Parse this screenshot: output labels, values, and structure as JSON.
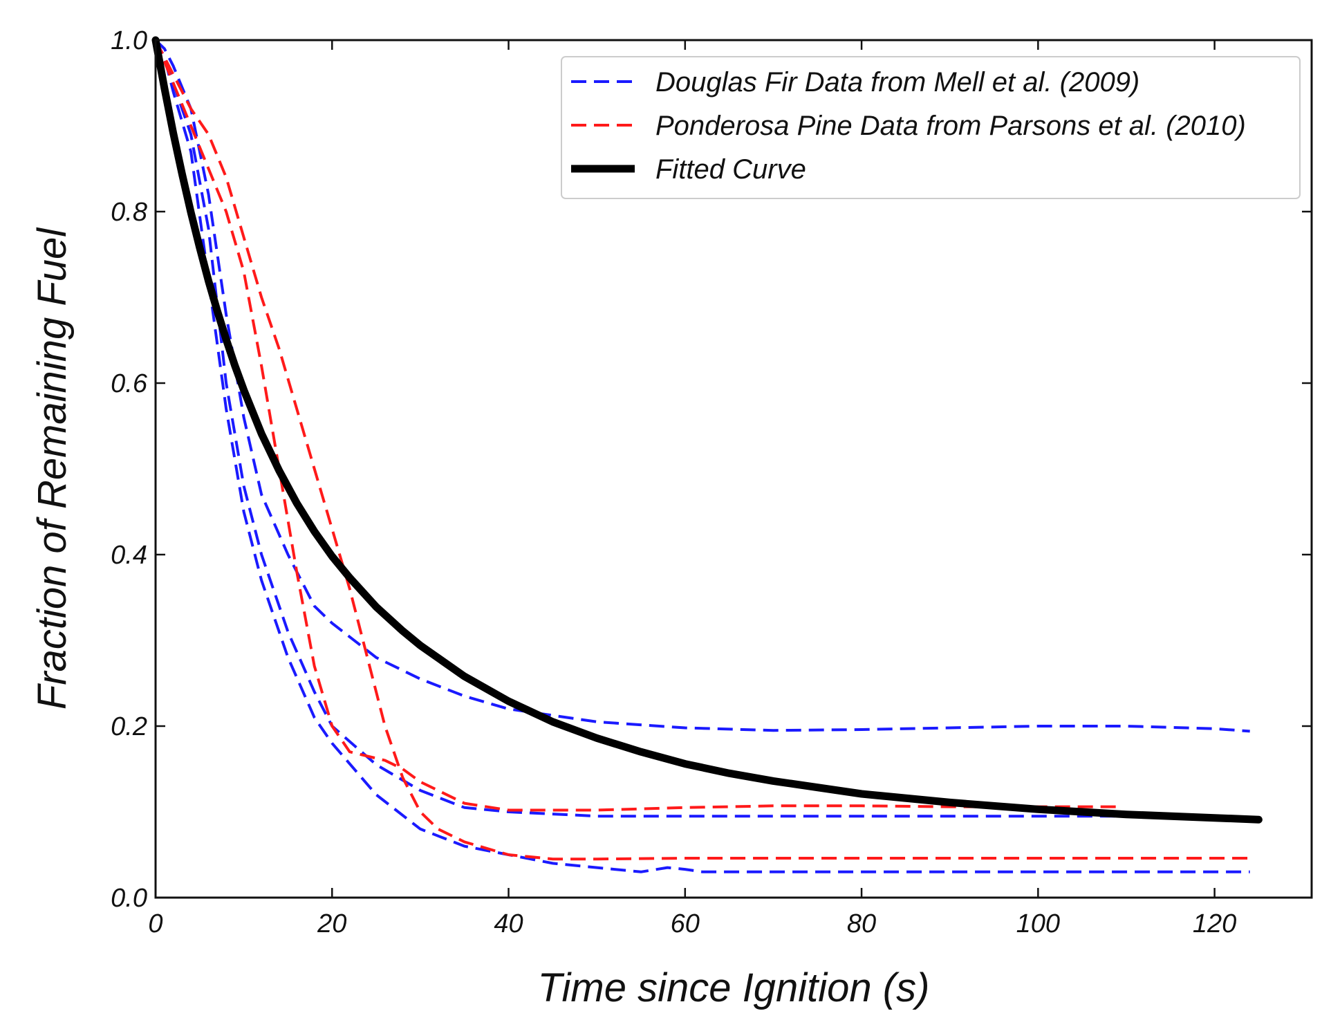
{
  "chart_data": {
    "type": "line",
    "title": "",
    "xlabel": "Time since Ignition (s)",
    "ylabel": "Fraction of Remaining Fuel",
    "xlim": [
      0,
      131
    ],
    "ylim": [
      0,
      1.0
    ],
    "xticks": [
      0,
      20,
      40,
      60,
      80,
      100,
      120
    ],
    "xtick_labels": [
      "0",
      "20",
      "40",
      "60",
      "80",
      "100",
      "120"
    ],
    "yticks": [
      0.0,
      0.2,
      0.4,
      0.6,
      0.8,
      1.0
    ],
    "ytick_labels": [
      "0.0",
      "0.2",
      "0.4",
      "0.6",
      "0.8",
      "1.0"
    ],
    "grid": false,
    "legend_position": "top-right",
    "legend": [
      {
        "label": "Douglas Fir Data from Mell et al. (2009)",
        "color": "#1a1aff",
        "style": "dashed"
      },
      {
        "label": "Ponderosa Pine Data from Parsons et al. (2010)",
        "color": "#ff1a1a",
        "style": "dashed"
      },
      {
        "label": "Fitted Curve",
        "color": "#000000",
        "style": "solid"
      }
    ],
    "series": [
      {
        "name": "Douglas Fir trial 1",
        "group": "Douglas Fir Data from Mell et al. (2009)",
        "color": "#1a1aff",
        "style": "dashed",
        "x": [
          0,
          1,
          2,
          4,
          6,
          8,
          10,
          12,
          15,
          18,
          20,
          25,
          30,
          35,
          40,
          50,
          60,
          70,
          80,
          90,
          100,
          110,
          120,
          124
        ],
        "y": [
          1.0,
          0.99,
          0.97,
          0.92,
          0.82,
          0.68,
          0.56,
          0.47,
          0.4,
          0.34,
          0.32,
          0.28,
          0.255,
          0.235,
          0.22,
          0.205,
          0.198,
          0.195,
          0.196,
          0.198,
          0.2,
          0.2,
          0.197,
          0.194
        ]
      },
      {
        "name": "Douglas Fir trial 2",
        "group": "Douglas Fir Data from Mell et al. (2009)",
        "color": "#1a1aff",
        "style": "dashed",
        "x": [
          0,
          1,
          2,
          4,
          6,
          8,
          10,
          12,
          15,
          18,
          20,
          25,
          30,
          35,
          40,
          50,
          60,
          70,
          80,
          100,
          120
        ],
        "y": [
          1.0,
          0.98,
          0.95,
          0.89,
          0.78,
          0.6,
          0.48,
          0.4,
          0.31,
          0.24,
          0.2,
          0.155,
          0.125,
          0.105,
          0.1,
          0.095,
          0.095,
          0.095,
          0.095,
          0.095,
          0.095
        ]
      },
      {
        "name": "Douglas Fir trial 3",
        "group": "Douglas Fir Data from Mell et al. (2009)",
        "color": "#1a1aff",
        "style": "dashed",
        "x": [
          0,
          1,
          2,
          4,
          6,
          8,
          10,
          12,
          15,
          18,
          20,
          25,
          30,
          35,
          40,
          45,
          50,
          55,
          58,
          60,
          62,
          70,
          80,
          100,
          124
        ],
        "y": [
          1.0,
          0.98,
          0.94,
          0.87,
          0.72,
          0.57,
          0.45,
          0.37,
          0.28,
          0.21,
          0.18,
          0.12,
          0.08,
          0.06,
          0.05,
          0.04,
          0.035,
          0.03,
          0.035,
          0.033,
          0.03,
          0.03,
          0.03,
          0.03,
          0.03
        ]
      },
      {
        "name": "Ponderosa Pine trial 1",
        "group": "Ponderosa Pine Data from Parsons et al. (2010)",
        "color": "#ff1a1a",
        "style": "dashed",
        "x": [
          0,
          2,
          4,
          6,
          8,
          10,
          12,
          14,
          16,
          18,
          20,
          22,
          24,
          26,
          28,
          30,
          35,
          40,
          50,
          60,
          70,
          80,
          90,
          100,
          109
        ],
        "y": [
          1.0,
          0.95,
          0.9,
          0.85,
          0.8,
          0.73,
          0.62,
          0.5,
          0.38,
          0.27,
          0.2,
          0.17,
          0.165,
          0.16,
          0.15,
          0.135,
          0.11,
          0.102,
          0.102,
          0.105,
          0.107,
          0.107,
          0.106,
          0.106,
          0.106
        ]
      },
      {
        "name": "Ponderosa Pine trial 2",
        "group": "Ponderosa Pine Data from Parsons et al. (2010)",
        "color": "#ff1a1a",
        "style": "dashed",
        "x": [
          0,
          2,
          4,
          6,
          8,
          10,
          12,
          14,
          16,
          18,
          20,
          22,
          24,
          26,
          28,
          30,
          32,
          35,
          40,
          45,
          50,
          60,
          80,
          100,
          124
        ],
        "y": [
          1.0,
          0.96,
          0.92,
          0.89,
          0.84,
          0.77,
          0.7,
          0.64,
          0.57,
          0.5,
          0.43,
          0.36,
          0.28,
          0.2,
          0.14,
          0.1,
          0.08,
          0.065,
          0.05,
          0.045,
          0.045,
          0.046,
          0.046,
          0.046,
          0.046
        ]
      },
      {
        "name": "Fitted Curve",
        "group": "Fitted Curve",
        "color": "#000000",
        "style": "solid",
        "x": [
          0,
          1,
          2,
          3,
          4,
          5,
          6,
          7,
          8,
          9,
          10,
          12,
          14,
          16,
          18,
          20,
          22,
          25,
          28,
          30,
          35,
          40,
          45,
          50,
          55,
          60,
          65,
          70,
          80,
          90,
          100,
          110,
          120,
          125
        ],
        "y": [
          1.0,
          0.944,
          0.892,
          0.844,
          0.799,
          0.758,
          0.719,
          0.684,
          0.651,
          0.62,
          0.592,
          0.541,
          0.498,
          0.46,
          0.427,
          0.398,
          0.373,
          0.339,
          0.311,
          0.294,
          0.258,
          0.229,
          0.205,
          0.186,
          0.17,
          0.156,
          0.145,
          0.136,
          0.121,
          0.111,
          0.103,
          0.097,
          0.093,
          0.091
        ]
      }
    ]
  }
}
